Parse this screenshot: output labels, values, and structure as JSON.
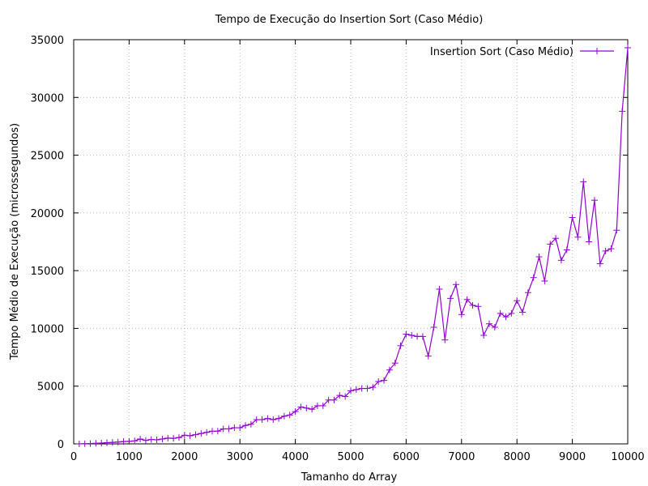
{
  "chart_data": {
    "type": "line",
    "title": "Tempo de Execução do Insertion Sort (Caso Médio)",
    "xlabel": "Tamanho do Array",
    "ylabel": "Tempo Médio de Execução (microssegundos)",
    "xlim": [
      0,
      10000
    ],
    "ylim": [
      0,
      35000
    ],
    "xticks": [
      0,
      1000,
      2000,
      3000,
      4000,
      5000,
      6000,
      7000,
      8000,
      9000,
      10000
    ],
    "yticks": [
      0,
      5000,
      10000,
      15000,
      20000,
      25000,
      30000,
      35000
    ],
    "grid": true,
    "legend_position": "top-right",
    "series": [
      {
        "name": "Insertion Sort (Caso Médio)",
        "color": "#9400d3",
        "marker": "plus",
        "x": [
          100,
          200,
          300,
          400,
          500,
          600,
          700,
          800,
          900,
          1000,
          1100,
          1200,
          1300,
          1400,
          1500,
          1600,
          1700,
          1800,
          1900,
          2000,
          2100,
          2200,
          2300,
          2400,
          2500,
          2600,
          2700,
          2800,
          2900,
          3000,
          3100,
          3200,
          3300,
          3400,
          3500,
          3600,
          3700,
          3800,
          3900,
          4000,
          4100,
          4200,
          4300,
          4400,
          4500,
          4600,
          4700,
          4800,
          4900,
          5000,
          5100,
          5200,
          5300,
          5400,
          5500,
          5600,
          5700,
          5800,
          5900,
          6000,
          6100,
          6200,
          6300,
          6400,
          6500,
          6600,
          6700,
          6800,
          6900,
          7000,
          7100,
          7200,
          7300,
          7400,
          7500,
          7600,
          7700,
          7800,
          7900,
          8000,
          8100,
          8200,
          8300,
          8400,
          8500,
          8600,
          8700,
          8800,
          8900,
          9000,
          9100,
          9200,
          9300,
          9400,
          9500,
          9600,
          9700,
          9800,
          9900,
          10000
        ],
        "y": [
          5,
          15,
          30,
          50,
          70,
          100,
          130,
          160,
          200,
          220,
          260,
          420,
          300,
          380,
          350,
          420,
          500,
          480,
          550,
          750,
          700,
          800,
          900,
          1000,
          1100,
          1100,
          1300,
          1300,
          1400,
          1400,
          1600,
          1700,
          2100,
          2100,
          2200,
          2100,
          2200,
          2400,
          2500,
          2800,
          3200,
          3100,
          3000,
          3300,
          3300,
          3800,
          3800,
          4200,
          4100,
          4600,
          4700,
          4800,
          4800,
          4900,
          5400,
          5500,
          6400,
          7000,
          8500,
          9500,
          9400,
          9300,
          9300,
          7600,
          10100,
          13400,
          9000,
          12600,
          13800,
          11200,
          12500,
          12000,
          11900,
          9400,
          10400,
          10100,
          11300,
          11000,
          11300,
          12400,
          11400,
          13100,
          14400,
          16200,
          14100,
          17300,
          17800,
          15900,
          16800,
          19600,
          17900,
          22700,
          17500,
          21100,
          15600,
          16700,
          16900,
          18500,
          28800,
          34300
        ]
      }
    ]
  }
}
